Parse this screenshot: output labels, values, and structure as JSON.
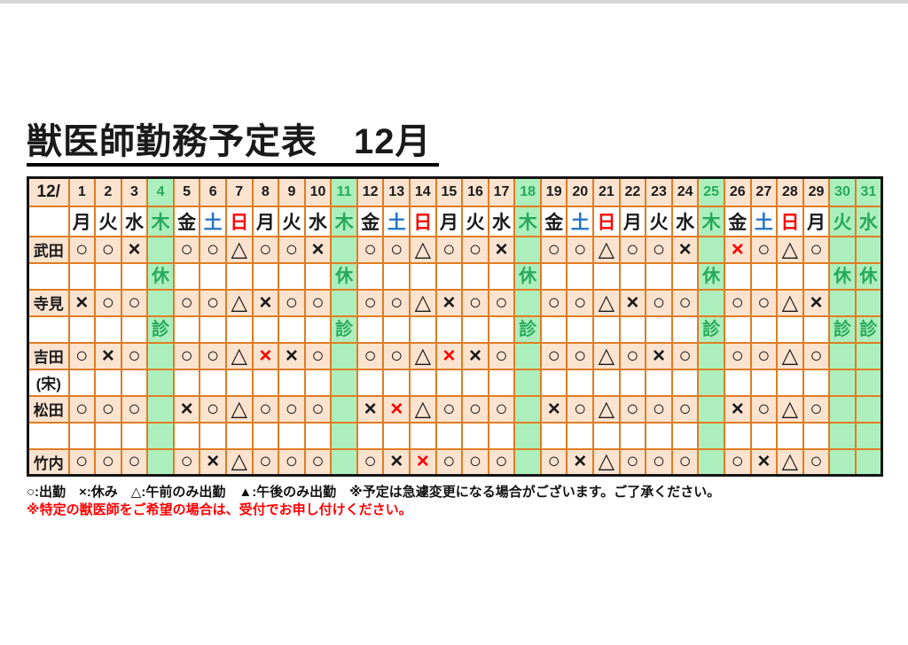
{
  "page": {
    "title": "獣医師勤務予定表　12月"
  },
  "colors": {
    "cell_peach": "#FBE3D0",
    "cell_green": "#ACEFBD",
    "text_green": "#26A95B",
    "text_blue": "#2272C3",
    "text_red": "#FF0000",
    "grid_orange": "#E07C22",
    "outer_border": "#141414",
    "top_bar": "#D6D6D6"
  },
  "table": {
    "corner_label": "12/",
    "green_closed_days": [
      4,
      11,
      18,
      25,
      30,
      31
    ],
    "days": [
      {
        "n": "1",
        "d": "月",
        "t": "wd"
      },
      {
        "n": "2",
        "d": "火",
        "t": "wd"
      },
      {
        "n": "3",
        "d": "水",
        "t": "wd"
      },
      {
        "n": "4",
        "d": "木",
        "t": "gr"
      },
      {
        "n": "5",
        "d": "金",
        "t": "wd"
      },
      {
        "n": "6",
        "d": "土",
        "t": "sa"
      },
      {
        "n": "7",
        "d": "日",
        "t": "su"
      },
      {
        "n": "8",
        "d": "月",
        "t": "wd"
      },
      {
        "n": "9",
        "d": "火",
        "t": "wd"
      },
      {
        "n": "10",
        "d": "水",
        "t": "wd"
      },
      {
        "n": "11",
        "d": "木",
        "t": "gr"
      },
      {
        "n": "12",
        "d": "金",
        "t": "wd"
      },
      {
        "n": "13",
        "d": "土",
        "t": "sa"
      },
      {
        "n": "14",
        "d": "日",
        "t": "su"
      },
      {
        "n": "15",
        "d": "月",
        "t": "wd"
      },
      {
        "n": "16",
        "d": "火",
        "t": "wd"
      },
      {
        "n": "17",
        "d": "水",
        "t": "wd"
      },
      {
        "n": "18",
        "d": "木",
        "t": "gr"
      },
      {
        "n": "19",
        "d": "金",
        "t": "wd"
      },
      {
        "n": "20",
        "d": "土",
        "t": "sa"
      },
      {
        "n": "21",
        "d": "日",
        "t": "su"
      },
      {
        "n": "22",
        "d": "月",
        "t": "wd"
      },
      {
        "n": "23",
        "d": "火",
        "t": "wd"
      },
      {
        "n": "24",
        "d": "水",
        "t": "wd"
      },
      {
        "n": "25",
        "d": "木",
        "t": "gr"
      },
      {
        "n": "26",
        "d": "金",
        "t": "wd"
      },
      {
        "n": "27",
        "d": "土",
        "t": "sa"
      },
      {
        "n": "28",
        "d": "日",
        "t": "su"
      },
      {
        "n": "29",
        "d": "月",
        "t": "wd"
      },
      {
        "n": "30",
        "d": "火",
        "t": "gr"
      },
      {
        "n": "31",
        "d": "水",
        "t": "gr"
      }
    ],
    "doctors": [
      {
        "name": "武田",
        "sub": {
          "label": "",
          "green_text": "休"
        },
        "schedule": [
          "○",
          "○",
          "×",
          "",
          "○",
          "○",
          "△",
          "○",
          "○",
          "×",
          "",
          "○",
          "○",
          "△",
          "○",
          "○",
          "×",
          "",
          "○",
          "○",
          "△",
          "○",
          "○",
          "×",
          "",
          "×!",
          "○",
          "△",
          "○",
          "",
          ""
        ]
      },
      {
        "name": "寺見",
        "sub": {
          "label": "",
          "green_text": "診"
        },
        "schedule": [
          "×",
          "○",
          "○",
          "",
          "○",
          "○",
          "△",
          "×",
          "○",
          "○",
          "",
          "○",
          "○",
          "△",
          "×",
          "○",
          "○",
          "",
          "○",
          "○",
          "△",
          "×",
          "○",
          "○",
          "",
          "○",
          "○",
          "△",
          "×",
          "",
          ""
        ]
      },
      {
        "name": "吉田",
        "sub": {
          "label": "(宋)",
          "green_text": ""
        },
        "schedule": [
          "○",
          "×",
          "○",
          "",
          "○",
          "○",
          "△",
          "×!",
          "×",
          "○",
          "",
          "○",
          "○",
          "△",
          "×!",
          "×",
          "○",
          "",
          "○",
          "○",
          "△",
          "○",
          "×",
          "○",
          "",
          "○",
          "○",
          "△",
          "○",
          "",
          ""
        ]
      },
      {
        "name": "松田",
        "sub": {
          "label": "",
          "green_text": ""
        },
        "schedule": [
          "○",
          "○",
          "○",
          "",
          "×",
          "○",
          "△",
          "○",
          "○",
          "○",
          "",
          "×",
          "×!",
          "△",
          "○",
          "○",
          "○",
          "",
          "×",
          "○",
          "△",
          "○",
          "○",
          "○",
          "",
          "×",
          "○",
          "△",
          "○",
          "",
          ""
        ]
      },
      {
        "name": "竹内",
        "sub": null,
        "schedule": [
          "○",
          "○",
          "○",
          "",
          "○",
          "×",
          "△",
          "○",
          "○",
          "○",
          "",
          "○",
          "×",
          "×!",
          "○",
          "○",
          "○",
          "",
          "○",
          "×",
          "△",
          "○",
          "○",
          "○",
          "",
          "○",
          "×",
          "△",
          "○",
          "",
          ""
        ]
      }
    ]
  },
  "legend": {
    "text": "○:出勤　×:休み　△:午前のみ出勤　▲:午後のみ出勤　※予定は急遽変更になる場合がございます。ご了承ください。"
  },
  "note": {
    "text": "※特定の獣医師をご希望の場合は、受付でお申し付けください。"
  }
}
